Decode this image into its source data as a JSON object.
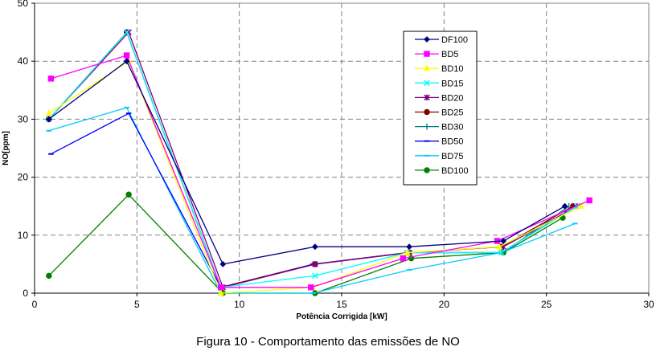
{
  "caption": "Figura 10 - Comportamento das emissões de NO",
  "chart_data": {
    "type": "line",
    "title": "",
    "xlabel": "Potência Corrigida [kW]",
    "ylabel": "NO[ppm]",
    "xlim": [
      0,
      30
    ],
    "ylim": [
      0,
      50
    ],
    "xticks": [
      0,
      5,
      10,
      15,
      20,
      25,
      30
    ],
    "yticks": [
      0,
      10,
      20,
      30,
      40,
      50
    ],
    "grid": "dashed",
    "legend_position": "top-right",
    "series": [
      {
        "name": "DF100",
        "color": "#000080",
        "marker": "diamond",
        "points": [
          [
            0.7,
            30
          ],
          [
            4.5,
            40
          ],
          [
            9.2,
            5
          ],
          [
            13.7,
            8
          ],
          [
            18.3,
            8
          ],
          [
            22.9,
            9
          ],
          [
            25.9,
            15
          ]
        ]
      },
      {
        "name": "BD5",
        "color": "#FF00FF",
        "marker": "square",
        "points": [
          [
            0.8,
            37
          ],
          [
            4.5,
            41
          ],
          [
            9.1,
            1
          ],
          [
            13.5,
            1
          ],
          [
            18.0,
            6
          ],
          [
            22.6,
            9
          ],
          [
            27.1,
            16
          ]
        ]
      },
      {
        "name": "BD10",
        "color": "#FFFF00",
        "marker": "triangle",
        "points": [
          [
            0.7,
            31
          ],
          [
            4.6,
            40
          ],
          [
            9.1,
            0
          ],
          [
            13.6,
            1
          ],
          [
            18.2,
            7
          ],
          [
            22.7,
            8
          ],
          [
            26.7,
            15
          ]
        ]
      },
      {
        "name": "BD15",
        "color": "#00FFFF",
        "marker": "x",
        "points": [
          [
            0.7,
            30
          ],
          [
            4.5,
            45
          ],
          [
            9.1,
            1
          ],
          [
            13.7,
            3
          ],
          [
            18.2,
            7
          ],
          [
            22.8,
            7
          ],
          [
            26.5,
            15
          ]
        ]
      },
      {
        "name": "BD20",
        "color": "#800080",
        "marker": "star",
        "points": [
          [
            0.7,
            30
          ],
          [
            4.6,
            45
          ],
          [
            9.2,
            1
          ],
          [
            13.7,
            5
          ],
          [
            18.3,
            7
          ],
          [
            22.9,
            8
          ],
          [
            26.5,
            15
          ]
        ]
      },
      {
        "name": "BD25",
        "color": "#800000",
        "marker": "circle",
        "points": [
          [
            0.7,
            30
          ],
          [
            4.5,
            45
          ],
          [
            9.1,
            1
          ],
          [
            13.7,
            5
          ],
          [
            18.3,
            7
          ],
          [
            22.8,
            8
          ],
          [
            26.3,
            15
          ]
        ]
      },
      {
        "name": "BD30",
        "color": "#008080",
        "marker": "plus",
        "points": [
          [
            0.7,
            30
          ],
          [
            4.5,
            45
          ],
          [
            9.1,
            1
          ],
          [
            13.7,
            5
          ],
          [
            18.3,
            7
          ],
          [
            22.9,
            7
          ],
          [
            26.1,
            15
          ]
        ]
      },
      {
        "name": "BD50",
        "color": "#0000FF",
        "marker": "dash",
        "points": [
          [
            0.8,
            24
          ],
          [
            4.6,
            31
          ],
          [
            9.1,
            1
          ],
          [
            13.6,
            5
          ],
          [
            18.2,
            7
          ],
          [
            22.8,
            7
          ],
          [
            26.0,
            14
          ]
        ]
      },
      {
        "name": "BD75",
        "color": "#00CCFF",
        "marker": "dash",
        "points": [
          [
            0.7,
            28
          ],
          [
            4.5,
            32
          ],
          [
            9.1,
            0
          ],
          [
            13.6,
            0
          ],
          [
            18.3,
            4
          ],
          [
            22.8,
            7
          ],
          [
            26.4,
            12
          ]
        ]
      },
      {
        "name": "BD100",
        "color": "#008000",
        "marker": "circle",
        "points": [
          [
            0.7,
            3
          ],
          [
            4.6,
            17
          ],
          [
            9.2,
            0
          ],
          [
            13.7,
            0
          ],
          [
            18.4,
            6
          ],
          [
            22.9,
            7
          ],
          [
            25.8,
            13
          ]
        ]
      }
    ]
  }
}
